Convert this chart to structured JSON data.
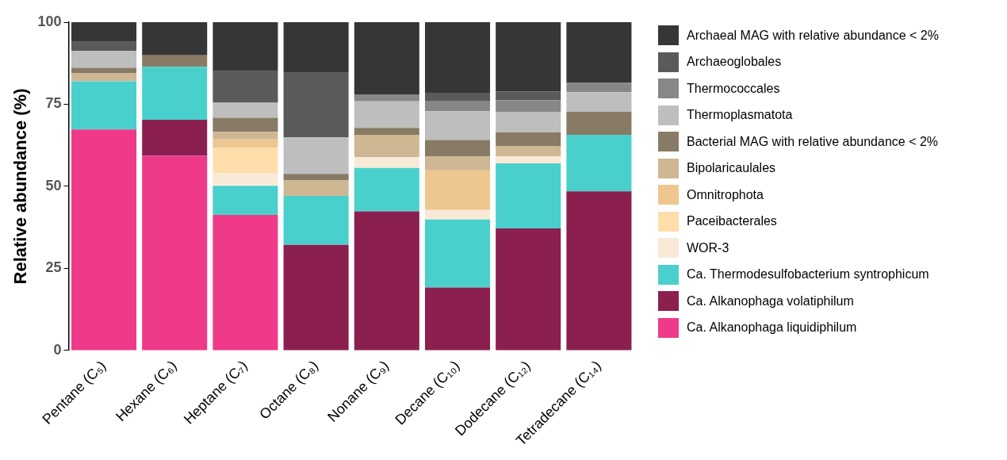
{
  "chart_data": {
    "type": "bar",
    "stacked": true,
    "ylabel": "Relative abundance (%)",
    "categories": [
      "Pentane (C₅)",
      "Hexane (C₆)",
      "Heptane (C₇)",
      "Octane (C₈)",
      "Nonane (C₉)",
      "Decane (C₁₀)",
      "Dodecane (C₁₂)",
      "Tetradecane (C₁₄)"
    ],
    "ylim": [
      0,
      100
    ],
    "yticks": [
      0,
      25,
      50,
      75,
      100
    ],
    "grid": false,
    "legend": "right",
    "series": [
      {
        "name": "Ca. Alkanophaga liquidiphilum",
        "color": "#ef3a8a",
        "values": [
          67.3,
          59.3,
          41.3,
          0,
          0,
          0,
          0,
          0
        ]
      },
      {
        "name": "Ca. Alkanophaga volatiphilum",
        "color": "#8b2050",
        "values": [
          0,
          11.0,
          0,
          32.2,
          42.4,
          19.2,
          37.2,
          48.5
        ]
      },
      {
        "name": "Ca. Thermodesulfobacterium syntrophicum",
        "color": "#4ad0cc",
        "values": [
          14.7,
          16.1,
          8.9,
          14.9,
          13.2,
          20.7,
          19.8,
          17.2
        ]
      },
      {
        "name": "WOR-3",
        "color": "#f9ead7",
        "values": [
          0,
          0,
          3.8,
          0,
          3.3,
          2.9,
          2.2,
          0
        ]
      },
      {
        "name": "Paceibacterales",
        "color": "#ffdeab",
        "values": [
          0,
          0,
          7.7,
          0,
          0,
          0,
          0,
          0
        ]
      },
      {
        "name": "Omnitrophota",
        "color": "#edc690",
        "values": [
          0,
          0,
          2.6,
          0,
          0,
          12.1,
          0,
          0
        ]
      },
      {
        "name": "Bipolaricaulales",
        "color": "#cfb793",
        "values": [
          2.4,
          0,
          2.3,
          4.8,
          6.8,
          4.3,
          3.1,
          0
        ]
      },
      {
        "name": "Bacterial MAG with relative abundance < 2%",
        "color": "#887b65",
        "values": [
          1.7,
          3.5,
          4.3,
          1.9,
          2.1,
          4.9,
          4.2,
          7.0
        ]
      },
      {
        "name": "Thermoplasmatota",
        "color": "#bebebe",
        "values": [
          5.2,
          0,
          4.6,
          11.1,
          8.1,
          8.8,
          6.2,
          6.0
        ]
      },
      {
        "name": "Thermococcales",
        "color": "#878787",
        "values": [
          0,
          0,
          0,
          0,
          2.1,
          3.0,
          3.5,
          2.8
        ]
      },
      {
        "name": "Archaeoglobales",
        "color": "#5a5a5a",
        "values": [
          2.7,
          0,
          9.6,
          19.7,
          0,
          2.6,
          2.7,
          0
        ]
      },
      {
        "name": "Archaeal MAG with relative abundance < 2%",
        "color": "#363636",
        "values": [
          6.0,
          10.1,
          14.9,
          15.4,
          22.0,
          21.5,
          21.1,
          18.5
        ]
      }
    ]
  }
}
